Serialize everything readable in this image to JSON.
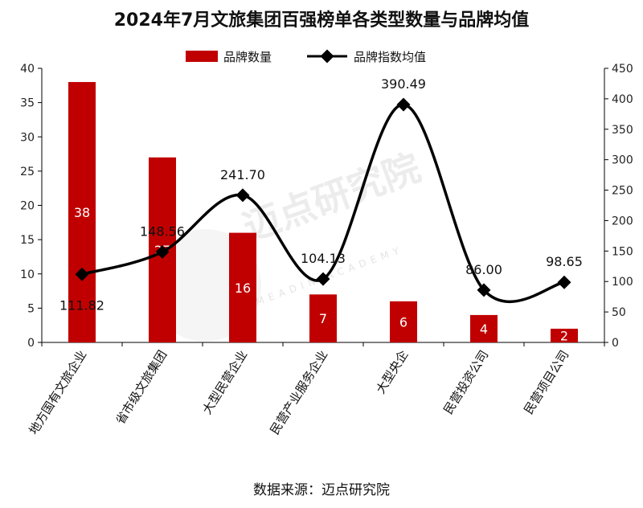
{
  "chart_data": {
    "type": "bar",
    "title": "2024年7月文旅集团百强榜单各类型数量与品牌均值",
    "categories": [
      "地方国有文旅企业",
      "省市级文旅集团",
      "大型民营企业",
      "民营产业服务企业",
      "大型央企",
      "民营投资公司",
      "民营项目公司"
    ],
    "series": [
      {
        "name": "品牌数量",
        "type": "bar",
        "axis": "left",
        "color": "#c00000",
        "values": [
          38,
          27,
          16,
          7,
          6,
          4,
          2
        ],
        "labels": [
          "38",
          "27",
          "16",
          "7",
          "6",
          "4",
          "2"
        ]
      },
      {
        "name": "品牌指数均值",
        "type": "line",
        "axis": "right",
        "color": "#000000",
        "values": [
          111.82,
          148.56,
          241.7,
          104.13,
          390.49,
          86.0,
          98.65
        ],
        "labels": [
          "111.82",
          "148.56",
          "241.70",
          "104.13",
          "390.49",
          "86.00",
          "98.65"
        ]
      }
    ],
    "y_left": {
      "lim": [
        0,
        40
      ],
      "ticks": [
        "0",
        "5",
        "10",
        "15",
        "20",
        "25",
        "30",
        "35",
        "40"
      ]
    },
    "y_right": {
      "lim": [
        0,
        450
      ],
      "ticks": [
        "0",
        "50",
        "100",
        "150",
        "200",
        "250",
        "300",
        "350",
        "400",
        "450"
      ]
    },
    "legend_position": "top-center",
    "grid": false,
    "source": "数据来源：迈点研究院",
    "watermark": {
      "text": "迈点研究院",
      "subtext": "MEADIN ACADEMY"
    }
  }
}
